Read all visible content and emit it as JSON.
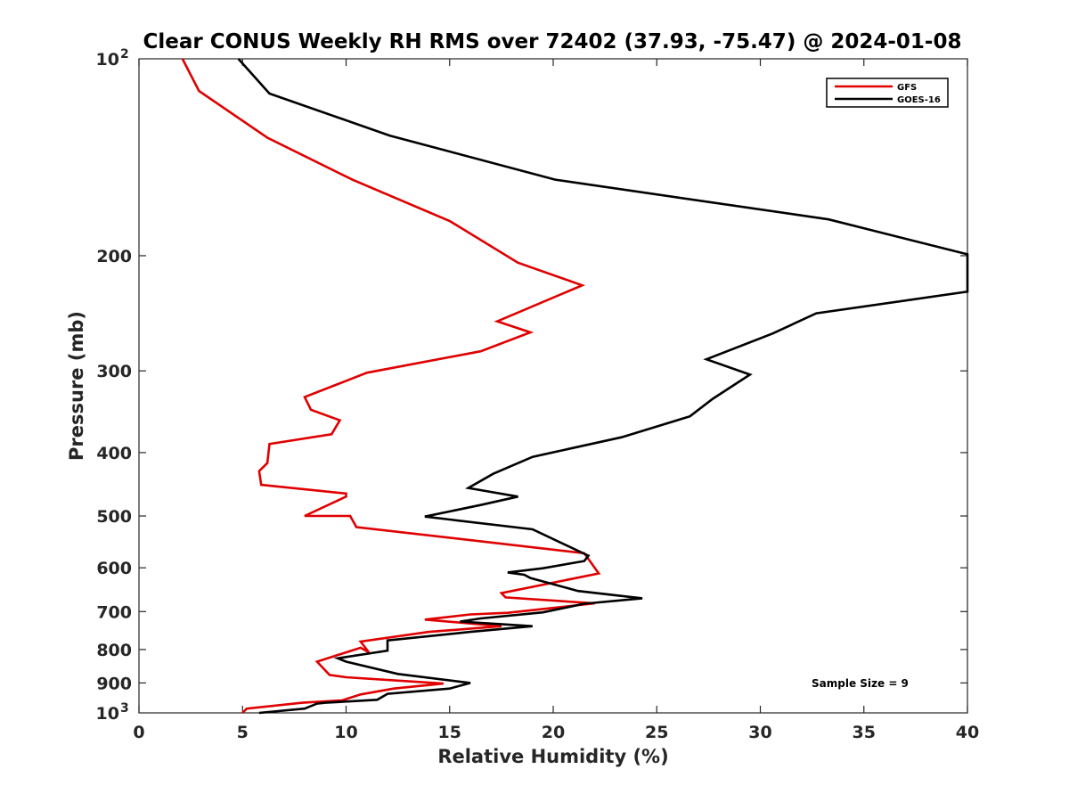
{
  "chart_data": {
    "type": "line",
    "title": "Clear CONUS Weekly RH RMS over 72402 (37.93, -75.47) @ 2024-01-08",
    "xlabel": "Relative Humidity (%)",
    "ylabel": "Pressure (mb)",
    "xlim": [
      0,
      40
    ],
    "ylim": [
      100,
      1000
    ],
    "y_scale": "log",
    "y_reversed": true,
    "x_ticks": [
      0,
      5,
      10,
      15,
      20,
      25,
      30,
      35,
      40
    ],
    "x_tick_labels": [
      "0",
      "5",
      "10",
      "15",
      "20",
      "25",
      "30",
      "35",
      "40"
    ],
    "y_ticks": [
      200,
      300,
      400,
      500,
      600,
      700,
      800,
      900
    ],
    "y_tick_labels": [
      "200",
      "300",
      "400",
      "500",
      "600",
      "700",
      "800",
      "900"
    ],
    "y_tick_100": {
      "base": "10",
      "exp": "2"
    },
    "y_tick_1000": {
      "base": "10",
      "exp": "3"
    },
    "legend_position": "top-right",
    "annotation": "Sample Size = 9",
    "series": [
      {
        "name": "GFS",
        "color": "#e00000",
        "x": [
          5.0,
          5.2,
          7.9,
          9.8,
          10.7,
          12.3,
          14.7,
          10.0,
          9.2,
          8.6,
          10.7,
          11.1,
          10.7,
          14.0,
          17.5,
          13.8,
          16.0,
          17.8,
          22.0,
          17.7,
          17.5,
          22.2,
          21.5,
          10.5,
          10.2,
          8.0,
          10.0,
          10.0,
          5.9,
          5.8,
          6.2,
          6.3,
          9.3,
          9.7,
          8.3,
          8.0,
          11.0,
          16.5,
          18.9,
          17.3,
          21.4,
          18.3,
          15.0,
          10.3,
          6.2,
          2.9,
          2.1
        ],
        "y": [
          1000,
          985,
          965,
          957,
          937,
          918,
          902,
          882,
          875,
          835,
          795,
          808,
          778,
          752,
          737,
          720,
          707,
          703,
          680,
          666,
          656,
          612,
          570,
          520,
          500,
          500,
          467,
          462,
          448,
          427,
          415,
          388,
          375,
          357,
          344,
          329,
          302,
          280,
          262,
          252,
          222,
          205,
          177,
          153,
          132,
          112,
          100
        ]
      },
      {
        "name": "GOES-16",
        "color": "#000000",
        "x": [
          5.8,
          8.0,
          8.6,
          9.0,
          11.5,
          12.0,
          15.0,
          16.0,
          12.5,
          10.0,
          9.6,
          12.0,
          12.0,
          16.0,
          19.0,
          15.5,
          16.5,
          19.5,
          21.5,
          24.3,
          21.2,
          18.9,
          18.6,
          17.8,
          19.5,
          21.5,
          21.7,
          19.0,
          13.8,
          16.5,
          18.3,
          15.9,
          17.1,
          19.0,
          23.3,
          26.6,
          27.7,
          29.5,
          27.4,
          30.6,
          32.7,
          40.0,
          40.0,
          33.3,
          20.1,
          12.1,
          6.3,
          4.8
        ],
        "y": [
          1000,
          985,
          968,
          965,
          955,
          935,
          918,
          900,
          872,
          835,
          825,
          803,
          775,
          752,
          737,
          725,
          717,
          702,
          681,
          668,
          651,
          622,
          615,
          610,
          601,
          586,
          575,
          524,
          501,
          481,
          467,
          453,
          431,
          406,
          379,
          352,
          331,
          304,
          288,
          263,
          245,
          227,
          199,
          176,
          153,
          131,
          113,
          100
        ]
      }
    ]
  }
}
